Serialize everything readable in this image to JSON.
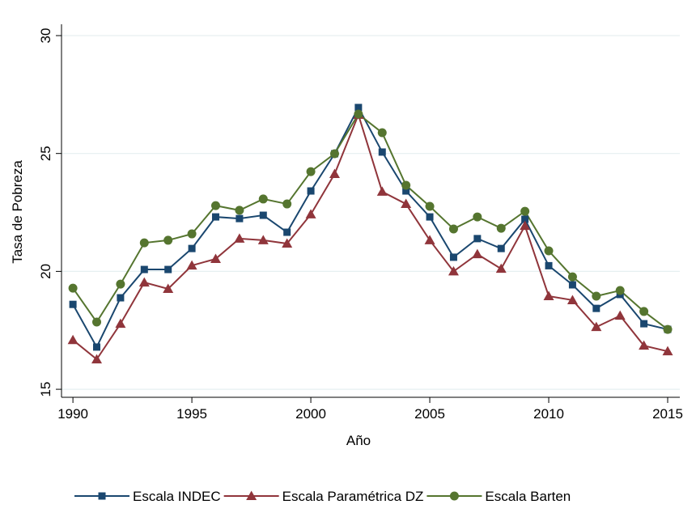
{
  "chart_data": {
    "type": "line",
    "x_label": "Año",
    "y_label": "Tasa de Pobreza",
    "x": [
      1990,
      1991,
      1992,
      1993,
      1994,
      1995,
      1996,
      1997,
      1998,
      1999,
      2000,
      2001,
      2002,
      2003,
      2004,
      2005,
      2006,
      2007,
      2008,
      2009,
      2010,
      2011,
      2012,
      2013,
      2014,
      2015
    ],
    "series": [
      {
        "name": "Escala INDEC",
        "color": "#1a476f",
        "marker": "square",
        "values": [
          18.6,
          16.79,
          18.88,
          20.08,
          20.08,
          20.97,
          22.31,
          22.24,
          22.38,
          21.66,
          23.41,
          24.99,
          26.95,
          25.06,
          23.41,
          22.31,
          20.6,
          21.39,
          20.97,
          22.21,
          20.24,
          19.43,
          18.43,
          19.02,
          17.78,
          17.54
        ]
      },
      {
        "name": "Escala Paramétrica DZ",
        "color": "#90353b",
        "marker": "triangle",
        "values": [
          17.09,
          16.27,
          17.78,
          19.53,
          19.26,
          20.25,
          20.53,
          21.39,
          21.32,
          21.18,
          22.42,
          24.13,
          26.64,
          23.38,
          22.86,
          21.32,
          20.0,
          20.73,
          20.11,
          21.93,
          18.95,
          18.78,
          17.64,
          18.12,
          16.85,
          16.61
        ]
      },
      {
        "name": "Escala Barten",
        "color": "#55752f",
        "marker": "circle",
        "values": [
          19.29,
          17.85,
          19.46,
          21.21,
          21.32,
          21.59,
          22.79,
          22.59,
          23.07,
          22.86,
          24.23,
          24.99,
          26.67,
          25.88,
          23.65,
          22.76,
          21.8,
          22.31,
          21.83,
          22.55,
          20.87,
          19.77,
          18.95,
          19.19,
          18.3,
          17.54
        ]
      }
    ],
    "xlim": [
      1989.52,
      2015.51
    ],
    "xticks": [
      1990,
      1995,
      2000,
      2005,
      2010,
      2015
    ],
    "ylim": [
      14.66,
      30.48
    ],
    "yticks": [
      15,
      20,
      25,
      30
    ],
    "grid": true,
    "legend": "bottom"
  }
}
